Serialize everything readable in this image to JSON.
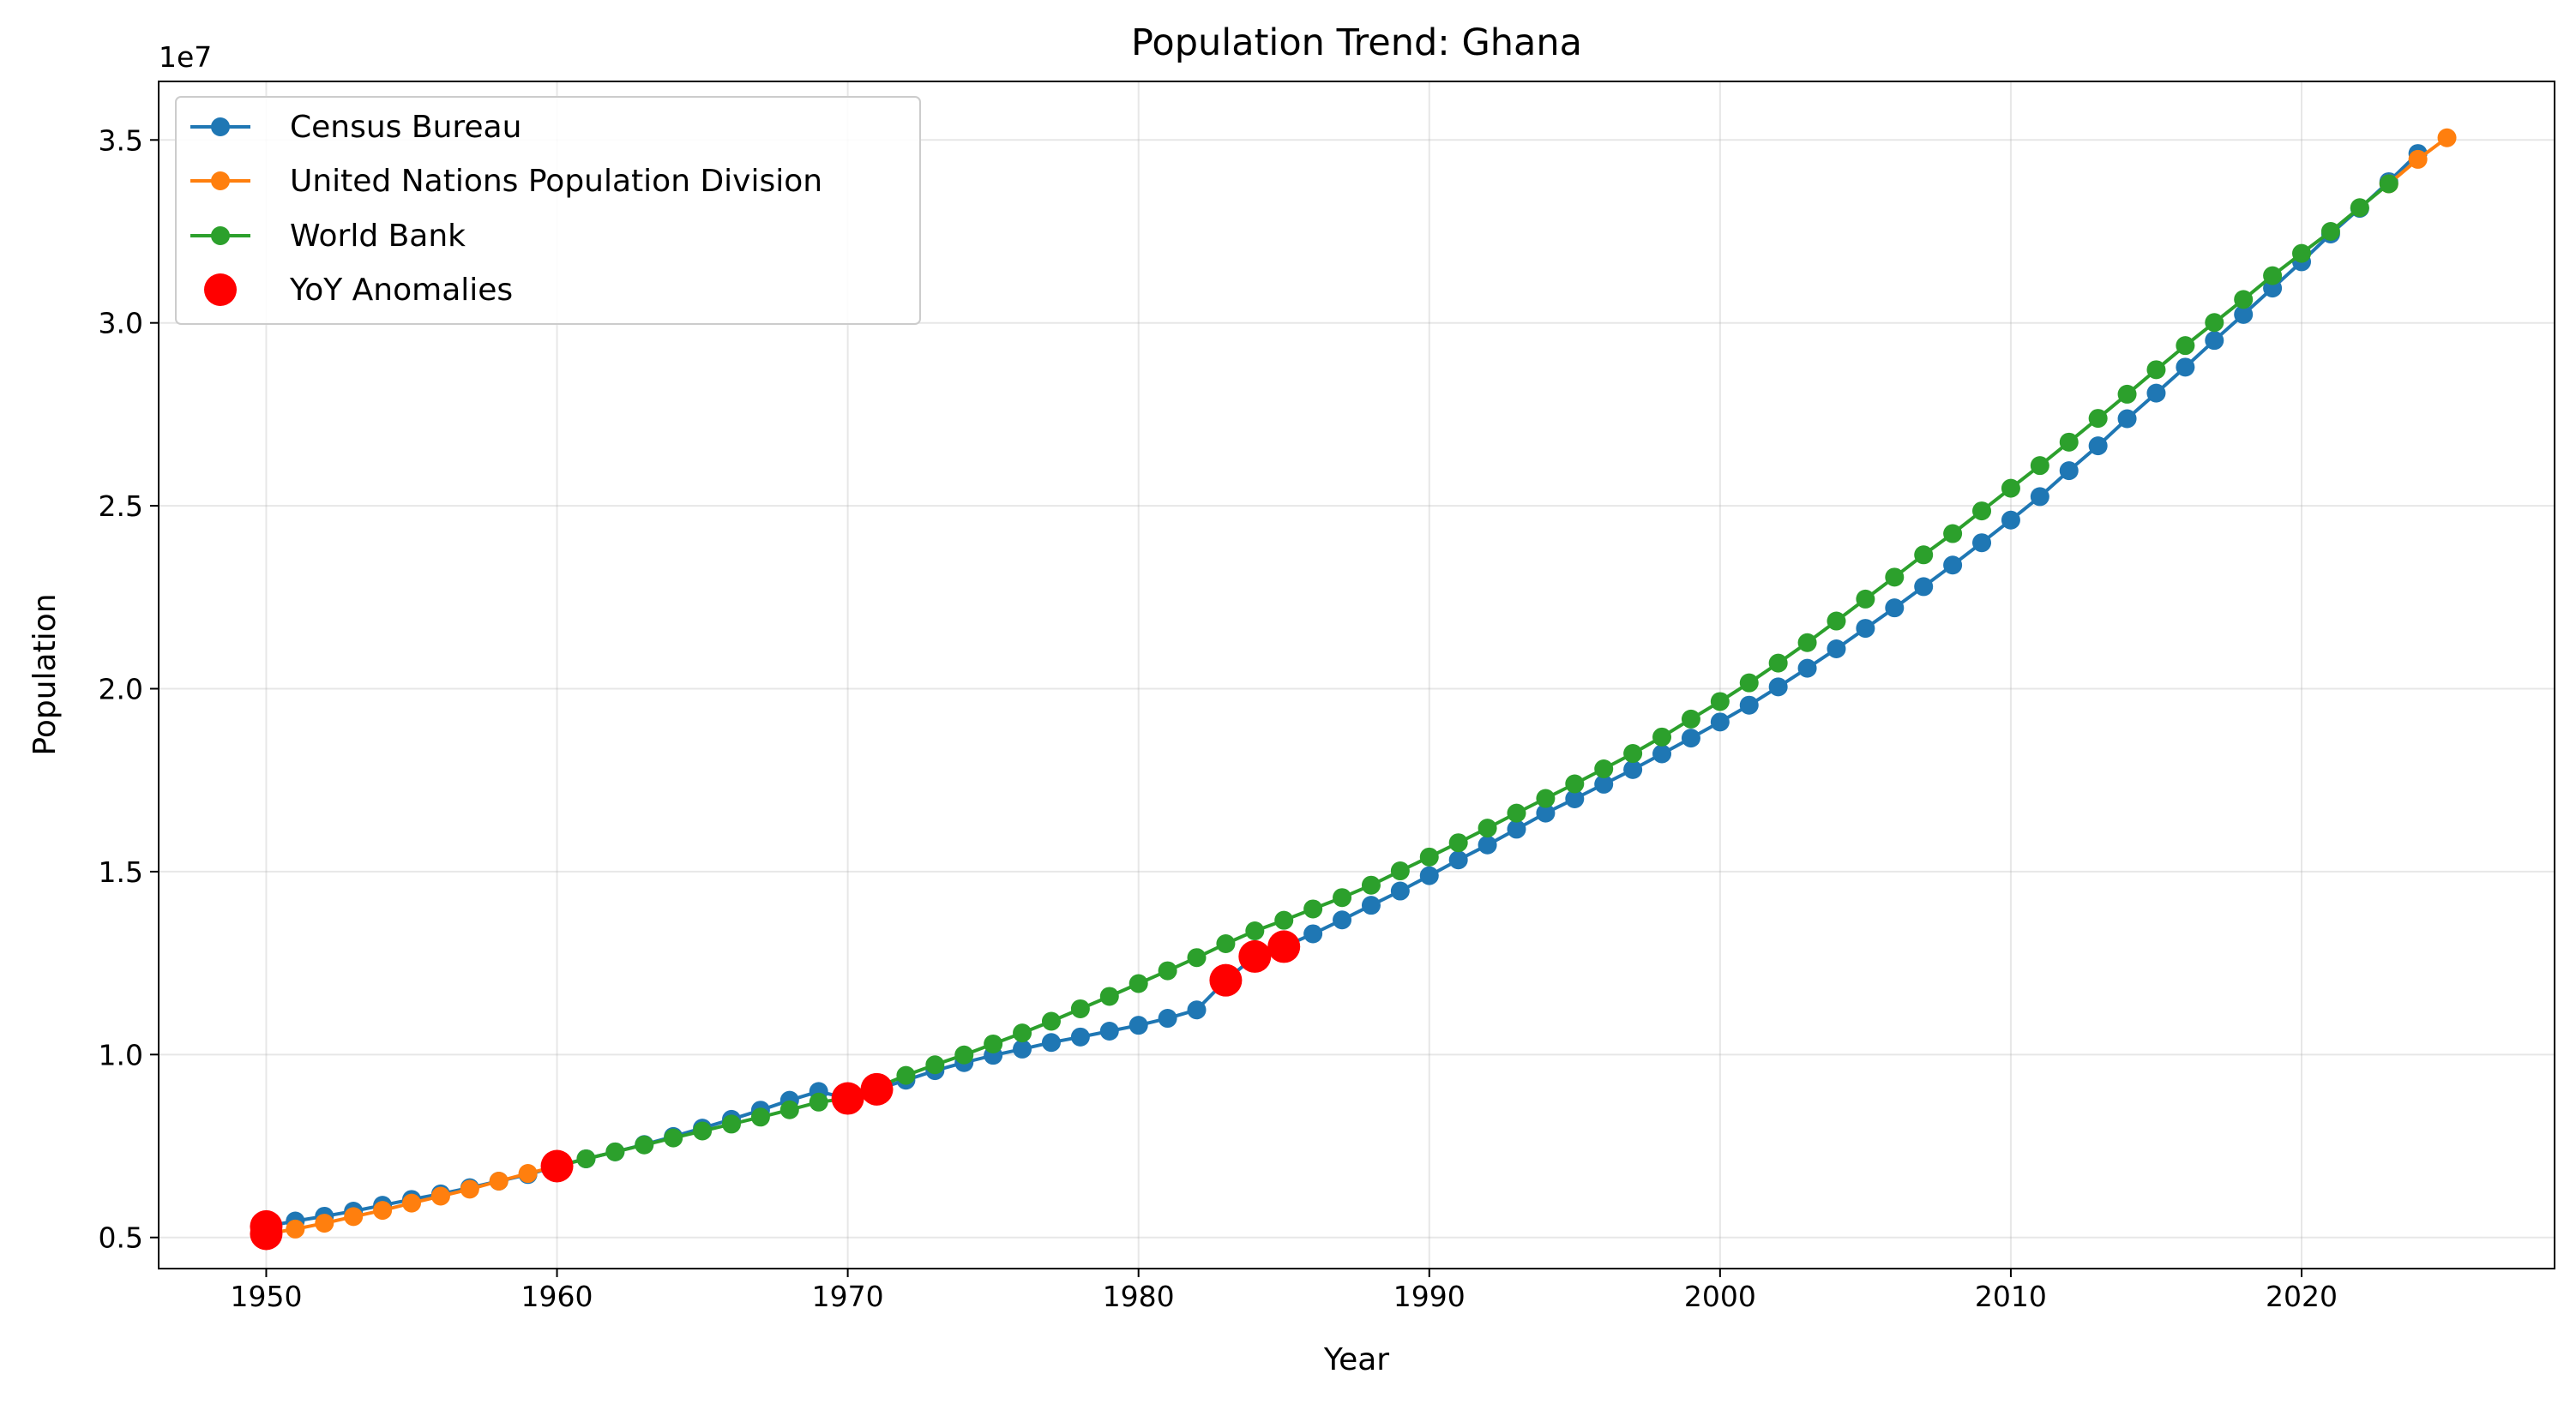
{
  "chart_data": {
    "type": "line",
    "title": "Population Trend: Ghana",
    "xlabel": "Year",
    "ylabel": "Population",
    "y_offset_label": "1e7",
    "xlim": [
      1946.3,
      2028.7
    ],
    "ylim": [
      4150000,
      36600000
    ],
    "x_ticks": [
      1950,
      1960,
      1970,
      1980,
      1990,
      2000,
      2010,
      2020
    ],
    "x_tick_labels": [
      "1950",
      "1960",
      "1970",
      "1980",
      "1990",
      "2000",
      "2010",
      "2020"
    ],
    "y_ticks": [
      5000000,
      10000000,
      15000000,
      20000000,
      25000000,
      30000000,
      35000000
    ],
    "y_tick_labels": [
      "0.5",
      "1.0",
      "1.5",
      "2.0",
      "2.5",
      "3.0",
      "3.5"
    ],
    "grid": true,
    "legend_position": "top-left",
    "series": [
      {
        "name": "Census Bureau",
        "color": "#1f77b4",
        "x": [
          1950,
          1951,
          1952,
          1953,
          1954,
          1955,
          1956,
          1957,
          1958,
          1959,
          1960,
          1961,
          1962,
          1963,
          1964,
          1965,
          1966,
          1967,
          1968,
          1969,
          1970,
          1971,
          1972,
          1973,
          1974,
          1975,
          1976,
          1977,
          1978,
          1979,
          1980,
          1981,
          1982,
          1983,
          1984,
          1985,
          1986,
          1987,
          1988,
          1989,
          1990,
          1991,
          1992,
          1993,
          1994,
          1995,
          1996,
          1997,
          1998,
          1999,
          2000,
          2001,
          2002,
          2003,
          2004,
          2005,
          2006,
          2007,
          2008,
          2009,
          2010,
          2011,
          2012,
          2013,
          2014,
          2015,
          2016,
          2017,
          2018,
          2019,
          2020,
          2021,
          2022,
          2023,
          2024
        ],
        "y": [
          5300000,
          5450000,
          5580000,
          5720000,
          5880000,
          6040000,
          6190000,
          6360000,
          6540000,
          6720000,
          6950000,
          7150000,
          7340000,
          7540000,
          7760000,
          7990000,
          8230000,
          8480000,
          8750000,
          8990000,
          8800000,
          9050000,
          9300000,
          9560000,
          9780000,
          9980000,
          10150000,
          10330000,
          10480000,
          10640000,
          10800000,
          10990000,
          11220000,
          12030000,
          12680000,
          12950000,
          13300000,
          13680000,
          14080000,
          14470000,
          14890000,
          15320000,
          15730000,
          16160000,
          16600000,
          16990000,
          17390000,
          17790000,
          18220000,
          18650000,
          19090000,
          19550000,
          20050000,
          20560000,
          21090000,
          21650000,
          22210000,
          22790000,
          23380000,
          23990000,
          24610000,
          25250000,
          25960000,
          26640000,
          27380000,
          28080000,
          28790000,
          29520000,
          30230000,
          30950000,
          31670000,
          32430000,
          33130000,
          33860000,
          34630000
        ]
      },
      {
        "name": "United Nations Population Division",
        "color": "#ff7f0e",
        "x": [
          1950,
          1951,
          1952,
          1953,
          1954,
          1955,
          1956,
          1957,
          1958,
          1959,
          1960,
          2023,
          2024,
          2025
        ],
        "y": [
          5100000,
          5230000,
          5390000,
          5570000,
          5740000,
          5940000,
          6130000,
          6320000,
          6540000,
          6750000,
          6950000,
          33800000,
          34470000,
          35060000
        ]
      },
      {
        "name": "World Bank",
        "color": "#2ca02c",
        "x": [
          1960,
          1961,
          1962,
          1963,
          1964,
          1965,
          1966,
          1967,
          1968,
          1969,
          1970,
          1971,
          1972,
          1973,
          1974,
          1975,
          1976,
          1977,
          1978,
          1979,
          1980,
          1981,
          1982,
          1983,
          1984,
          1985,
          1986,
          1987,
          1988,
          1989,
          1990,
          1991,
          1992,
          1993,
          1994,
          1995,
          1996,
          1997,
          1998,
          1999,
          2000,
          2001,
          2002,
          2003,
          2004,
          2005,
          2006,
          2007,
          2008,
          2009,
          2010,
          2011,
          2012,
          2013,
          2014,
          2015,
          2016,
          2017,
          2018,
          2019,
          2020,
          2021,
          2022,
          2023
        ],
        "y": [
          6950000,
          7150000,
          7340000,
          7530000,
          7720000,
          7910000,
          8100000,
          8290000,
          8490000,
          8700000,
          8800000,
          9100000,
          9430000,
          9720000,
          9990000,
          10290000,
          10590000,
          10910000,
          11250000,
          11590000,
          11940000,
          12290000,
          12650000,
          13030000,
          13380000,
          13670000,
          13980000,
          14290000,
          14630000,
          15020000,
          15400000,
          15790000,
          16190000,
          16600000,
          17000000,
          17400000,
          17810000,
          18230000,
          18680000,
          19170000,
          19650000,
          20160000,
          20700000,
          21260000,
          21850000,
          22450000,
          23050000,
          23660000,
          24240000,
          24860000,
          25480000,
          26100000,
          26740000,
          27390000,
          28050000,
          28720000,
          29380000,
          30010000,
          30640000,
          31290000,
          31900000,
          32500000,
          33150000,
          33800000
        ]
      }
    ],
    "anomalies": {
      "name": "YoY Anomalies",
      "color": "#ff0000",
      "x": [
        1950,
        1950,
        1960,
        1970,
        1971,
        1983,
        1984,
        1985
      ],
      "y": [
        5300000,
        5100000,
        6950000,
        8800000,
        9050000,
        12030000,
        12680000,
        12950000
      ]
    }
  }
}
